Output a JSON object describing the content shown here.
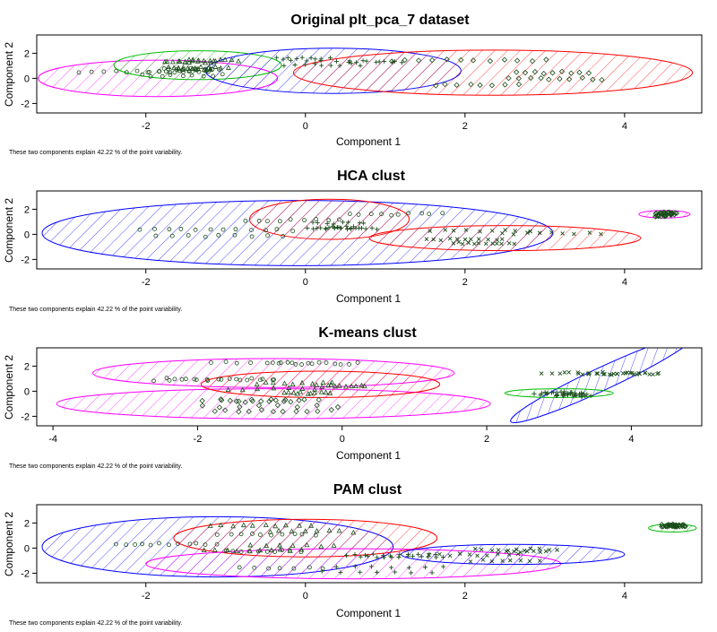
{
  "chart_data": [
    {
      "type": "scatter",
      "title": "Original plt_pca_7 dataset",
      "xlabel": "Component 1",
      "ylabel": "Component 2",
      "footnote": "These two components explain 42.22 % of the point variability.",
      "xlim": [
        -3.3,
        4.9
      ],
      "ylim": [
        -2.4,
        3.1
      ],
      "xticks": [
        -2,
        0,
        2,
        4
      ],
      "yticks": [
        -2,
        0,
        2
      ],
      "clusters": [
        {
          "color": "#ff00ff",
          "cx": -1.85,
          "cy": 0.0,
          "rx": 1.5,
          "ry": 1.45,
          "angle": 0,
          "marker": "circle"
        },
        {
          "color": "#00bb00",
          "cx": -1.35,
          "cy": 1.05,
          "rx": 1.05,
          "ry": 1.15,
          "angle": 0,
          "marker": "triangle"
        },
        {
          "color": "#0000ff",
          "cx": 0.35,
          "cy": 0.6,
          "rx": 1.6,
          "ry": 1.8,
          "angle": 0,
          "marker": "plus"
        },
        {
          "color": "#ff0000",
          "cx": 2.35,
          "cy": 0.45,
          "rx": 2.5,
          "ry": 1.8,
          "angle": 0,
          "marker": "diamond"
        }
      ]
    },
    {
      "type": "scatter",
      "title": "HCA clust",
      "xlabel": "Component 1",
      "ylabel": "Component 2",
      "footnote": "These two components explain 42.22 % of the point variability.",
      "xlim": [
        -3.3,
        4.9
      ],
      "ylim": [
        -2.4,
        3.1
      ],
      "xticks": [
        -2,
        0,
        2,
        4
      ],
      "yticks": [
        -2,
        0,
        2
      ],
      "clusters": [
        {
          "color": "#0000ff",
          "cx": -0.1,
          "cy": 0.1,
          "rx": 3.2,
          "ry": 2.6,
          "angle": 0,
          "marker": "circle"
        },
        {
          "color": "#ff0000",
          "cx": 0.3,
          "cy": 1.2,
          "rx": 1.0,
          "ry": 1.6,
          "angle": 0,
          "marker": "plus"
        },
        {
          "color": "#ff0000",
          "cx": 2.5,
          "cy": -0.3,
          "rx": 1.7,
          "ry": 1.0,
          "angle": 0,
          "marker": "cross"
        },
        {
          "color": "#ff00ff",
          "cx": 4.5,
          "cy": 1.6,
          "rx": 0.32,
          "ry": 0.3,
          "angle": 0,
          "marker": "diamond"
        }
      ]
    },
    {
      "type": "scatter",
      "title": "K-means clust",
      "xlabel": "Component 1",
      "ylabel": "Component 2",
      "footnote": "These two components explain 42.22 % of the point variability.",
      "xlim": [
        -4.15,
        4.9
      ],
      "ylim": [
        -2.4,
        3.1
      ],
      "xticks": [
        -4,
        -2,
        0,
        2,
        4
      ],
      "yticks": [
        -2,
        0,
        2
      ],
      "clusters": [
        {
          "color": "#ff00ff",
          "cx": -0.95,
          "cy": 1.45,
          "rx": 2.5,
          "ry": 1.15,
          "angle": 0,
          "marker": "circle"
        },
        {
          "color": "#ff00ff",
          "cx": -0.95,
          "cy": -1.0,
          "rx": 3.0,
          "ry": 1.2,
          "angle": 0,
          "marker": "diamond"
        },
        {
          "color": "#ff0000",
          "cx": -0.3,
          "cy": 0.55,
          "rx": 1.65,
          "ry": 1.05,
          "angle": 0,
          "marker": "triangle"
        },
        {
          "color": "#0000ff",
          "cx": 3.6,
          "cy": 1.0,
          "rx": 1.4,
          "ry": 0.9,
          "angle": -25,
          "marker": "cross"
        },
        {
          "color": "#00bb00",
          "cx": 3.0,
          "cy": -0.15,
          "rx": 0.75,
          "ry": 0.35,
          "angle": 0,
          "marker": "plus"
        }
      ]
    },
    {
      "type": "scatter",
      "title": "PAM clust",
      "xlabel": "Component 1",
      "ylabel": "Component 2",
      "footnote": "These two components explain 42.22 % of the point variability.",
      "xlim": [
        -3.3,
        4.9
      ],
      "ylim": [
        -2.4,
        3.1
      ],
      "xticks": [
        -2,
        0,
        2,
        4
      ],
      "yticks": [
        -2,
        0,
        2
      ],
      "clusters": [
        {
          "color": "#0000ff",
          "cx": -1.1,
          "cy": 0.1,
          "rx": 2.2,
          "ry": 2.4,
          "angle": 0,
          "marker": "circle"
        },
        {
          "color": "#ff0000",
          "cx": 0.0,
          "cy": 0.8,
          "rx": 1.65,
          "ry": 1.5,
          "angle": 0,
          "marker": "triangle"
        },
        {
          "color": "#ff00ff",
          "cx": 0.6,
          "cy": -1.25,
          "rx": 2.6,
          "ry": 1.2,
          "angle": 0,
          "marker": "plus"
        },
        {
          "color": "#0000ff",
          "cx": 2.6,
          "cy": -0.5,
          "rx": 1.4,
          "ry": 0.8,
          "angle": 0,
          "marker": "cross"
        },
        {
          "color": "#00bb00",
          "cx": 4.6,
          "cy": 1.6,
          "rx": 0.3,
          "ry": 0.32,
          "angle": 0,
          "marker": "diamond"
        }
      ]
    }
  ]
}
